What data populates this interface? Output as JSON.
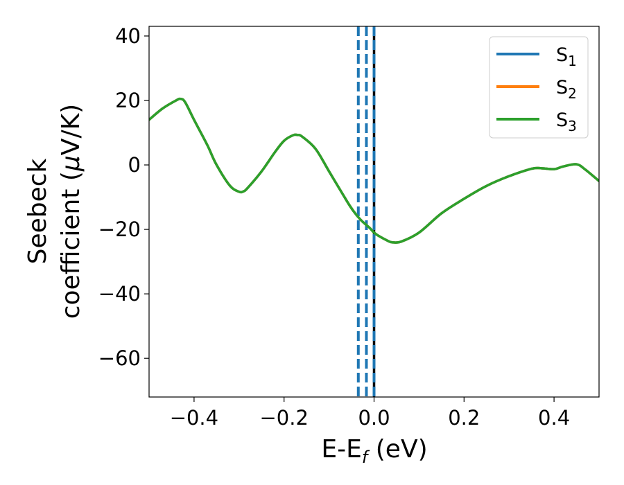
{
  "chart_data": {
    "type": "line",
    "xlabel": {
      "main": "E-E",
      "sub": "f",
      "rest": " (eV)"
    },
    "ylabel": {
      "line1": "Seebeck",
      "line2_a": "coefficient  (",
      "line2_mu": "μ",
      "line2_b": "V/K)"
    },
    "xlim": [
      -0.5,
      0.5
    ],
    "ylim": [
      -72,
      43
    ],
    "xticks": [
      -0.4,
      -0.2,
      0.0,
      0.2,
      0.4
    ],
    "xtick_labels": [
      "−0.4",
      "−0.2",
      "0.0",
      "0.2",
      "0.4"
    ],
    "yticks": [
      40,
      20,
      0,
      -20,
      -40,
      -60
    ],
    "ytick_labels": [
      "40",
      "20",
      "0",
      "−20",
      "−40",
      "−60"
    ],
    "grid": false,
    "legend_position": "top-right",
    "legend": [
      {
        "base": "S",
        "sub": "1",
        "color": "#1f77b4"
      },
      {
        "base": "S",
        "sub": "2",
        "color": "#ff7f0e"
      },
      {
        "base": "S",
        "sub": "3",
        "color": "#2ca02c"
      }
    ],
    "vlines": [
      {
        "x": -0.035,
        "style": "dashed",
        "color": "#1f77b4"
      },
      {
        "x": -0.017,
        "style": "dashed",
        "color": "#1f77b4"
      },
      {
        "x": 0.0,
        "style": "solid",
        "color": "#000000"
      },
      {
        "x": 0.0,
        "style": "dashed",
        "color": "#1f77b4"
      }
    ],
    "x": [
      -0.5,
      -0.47,
      -0.44,
      -0.43,
      -0.42,
      -0.4,
      -0.37,
      -0.35,
      -0.32,
      -0.3,
      -0.29,
      -0.28,
      -0.25,
      -0.22,
      -0.2,
      -0.18,
      -0.17,
      -0.16,
      -0.13,
      -0.1,
      -0.07,
      -0.05,
      -0.03,
      -0.01,
      0.0,
      0.01,
      0.03,
      0.04,
      0.06,
      0.1,
      0.15,
      0.2,
      0.25,
      0.3,
      0.35,
      0.37,
      0.4,
      0.42,
      0.45,
      0.47,
      0.5
    ],
    "series": [
      {
        "name": "S_1",
        "color": "#1f77b4",
        "y": [
          14,
          17.5,
          20,
          20.5,
          19.5,
          14,
          6,
          0,
          -6.5,
          -8.3,
          -8.2,
          -7,
          -2,
          4,
          7.5,
          9.2,
          9.3,
          8.8,
          5,
          -2,
          -9,
          -13.5,
          -17,
          -19.5,
          -21,
          -22,
          -23.5,
          -24,
          -23.8,
          -21,
          -15,
          -10.5,
          -6.5,
          -3.5,
          -1.2,
          -1,
          -1.3,
          -0.5,
          0.2,
          -1.5,
          -5
        ]
      },
      {
        "name": "S_2",
        "color": "#ff7f0e",
        "y": [
          14,
          17.5,
          20,
          20.5,
          19.5,
          14,
          6,
          0,
          -6.5,
          -8.3,
          -8.2,
          -7,
          -2,
          4,
          7.5,
          9.2,
          9.3,
          8.8,
          5,
          -2,
          -9,
          -13.5,
          -17,
          -19.5,
          -21,
          -22,
          -23.5,
          -24,
          -23.8,
          -21,
          -15,
          -10.5,
          -6.5,
          -3.5,
          -1.2,
          -1,
          -1.3,
          -0.5,
          0.2,
          -1.5,
          -5
        ]
      },
      {
        "name": "S_3",
        "color": "#2ca02c",
        "y": [
          14,
          17.5,
          20,
          20.5,
          19.5,
          14,
          6,
          0,
          -6.5,
          -8.3,
          -8.2,
          -7,
          -2,
          4,
          7.5,
          9.2,
          9.3,
          8.8,
          5,
          -2,
          -9,
          -13.5,
          -17,
          -19.5,
          -21,
          -22,
          -23.5,
          -24,
          -23.8,
          -21,
          -15,
          -10.5,
          -6.5,
          -3.5,
          -1.2,
          -1,
          -1.3,
          -0.5,
          0.2,
          -1.5,
          -5
        ]
      }
    ]
  }
}
